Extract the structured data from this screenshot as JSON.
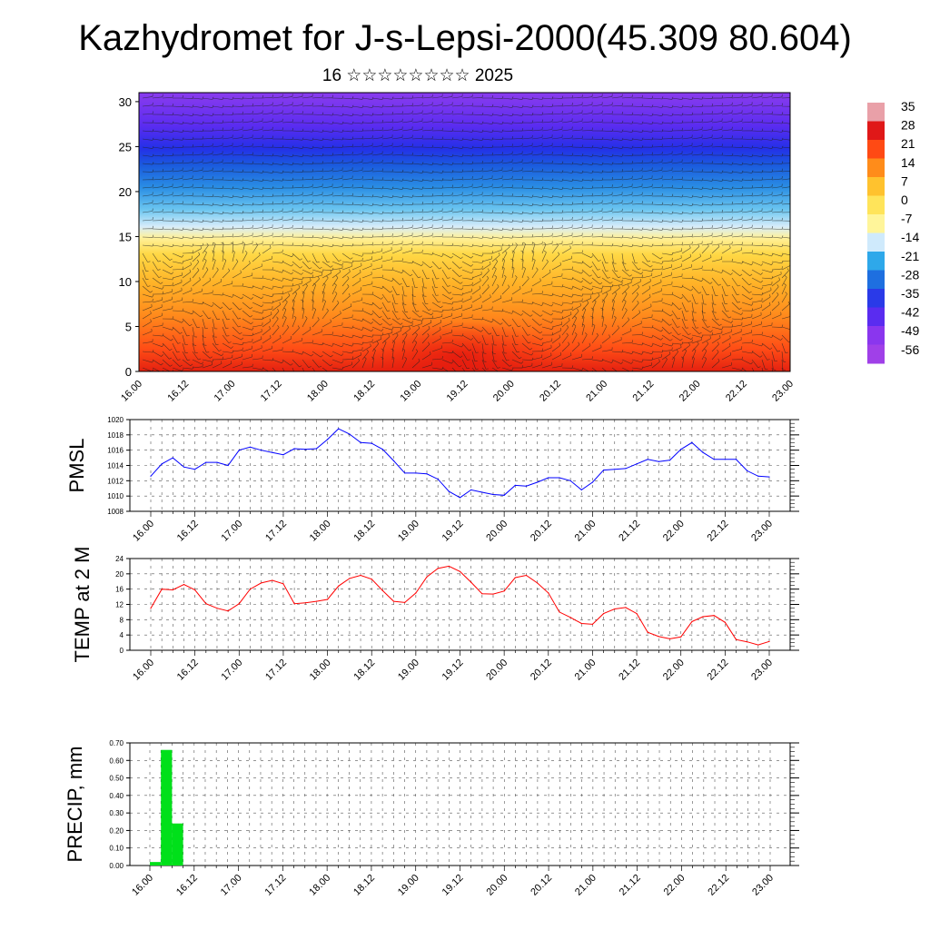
{
  "header": {
    "title": "Kazhydromet for J-s-Lepsi-2000(45.309 80.604)",
    "subtitle": "16 ☆☆☆☆☆☆☆☆ 2025"
  },
  "chart_data": [
    {
      "type": "heatmap",
      "x_labels": [
        "16.00",
        "16.12",
        "17.00",
        "17.12",
        "18.00",
        "18.12",
        "19.00",
        "19.12",
        "20.00",
        "20.12",
        "21.00",
        "21.12",
        "22.00",
        "22.12",
        "23.00"
      ],
      "y_ticks": [
        0,
        5,
        10,
        15,
        20,
        25,
        30
      ],
      "ylim": [
        0,
        31
      ],
      "colorbar": {
        "labels": [
          "35",
          "28",
          "21",
          "14",
          "7",
          "0",
          "-7",
          "-14",
          "-21",
          "-28",
          "-35",
          "-42",
          "-49",
          "-56"
        ],
        "colors": [
          "#e9a0a8",
          "#e01818",
          "#ff4a14",
          "#ff8c1a",
          "#ffc22e",
          "#ffe45a",
          "#fff59a",
          "#cfeafc",
          "#2ea8ea",
          "#1e6fe0",
          "#2a3ae8",
          "#5a2cf0",
          "#8a36ee",
          "#a040e8"
        ]
      },
      "wind_barbs": true
    },
    {
      "type": "line",
      "ylabel": "PMSL",
      "x_labels": [
        "16.00",
        "16.12",
        "17.00",
        "17.12",
        "18.00",
        "18.12",
        "19.00",
        "19.12",
        "20.00",
        "20.12",
        "21.00",
        "21.12",
        "22.00",
        "22.12",
        "23.00"
      ],
      "y_ticks": [
        "1008",
        "1010",
        "1012",
        "1014",
        "1016",
        "1018",
        "1020"
      ],
      "ylim": [
        1008,
        1020
      ],
      "color": "#0000ff",
      "values": [
        1012.6,
        1014.2,
        1015.0,
        1013.8,
        1013.5,
        1014.4,
        1014.4,
        1014.0,
        1016.0,
        1016.4,
        1016.0,
        1015.7,
        1015.4,
        1016.2,
        1016.1,
        1016.2,
        1017.4,
        1018.8,
        1018.1,
        1017.0,
        1016.9,
        1016.1,
        1014.6,
        1013.0,
        1013.0,
        1012.9,
        1012.2,
        1010.6,
        1009.8,
        1010.8,
        1010.5,
        1010.2,
        1010.1,
        1011.4,
        1011.3,
        1011.8,
        1012.4,
        1012.4,
        1012.0,
        1010.8,
        1011.8,
        1013.4,
        1013.5,
        1013.6,
        1014.2,
        1014.8,
        1014.5,
        1014.7,
        1016.1,
        1017.0,
        1015.7,
        1014.8,
        1014.8,
        1014.8,
        1013.3,
        1012.6,
        1012.5
      ],
      "grid": true
    },
    {
      "type": "line",
      "ylabel": "TEMP at 2 M",
      "x_labels": [
        "16.00",
        "16.12",
        "17.00",
        "17.12",
        "18.00",
        "18.12",
        "19.00",
        "19.12",
        "20.00",
        "20.12",
        "21.00",
        "21.12",
        "22.00",
        "22.12",
        "23.00"
      ],
      "y_ticks": [
        "0",
        "4",
        "8",
        "12",
        "16",
        "20",
        "24"
      ],
      "ylim": [
        0,
        24
      ],
      "color": "#ff0000",
      "values": [
        11.0,
        16.0,
        15.8,
        17.2,
        15.8,
        12.2,
        11.0,
        10.3,
        12.2,
        16.0,
        17.6,
        18.3,
        17.4,
        12.2,
        12.4,
        12.8,
        13.3,
        16.8,
        18.8,
        19.6,
        18.6,
        15.6,
        12.8,
        12.5,
        15.0,
        19.2,
        21.4,
        22.0,
        20.6,
        17.8,
        14.8,
        14.7,
        15.5,
        19.0,
        19.6,
        17.6,
        15.0,
        10.0,
        8.6,
        7.0,
        6.8,
        9.6,
        10.8,
        11.2,
        9.6,
        4.7,
        3.6,
        3.0,
        3.5,
        7.5,
        8.8,
        9.1,
        7.3,
        2.8,
        2.2,
        1.4,
        2.3
      ],
      "grid": true
    },
    {
      "type": "bar",
      "ylabel": "PRECIP, mm",
      "x_labels": [
        "16.00",
        "16.12",
        "17.00",
        "17.12",
        "18.00",
        "18.12",
        "19.00",
        "19.12",
        "20.00",
        "20.12",
        "21.00",
        "21.12",
        "22.00",
        "22.12",
        "23.00"
      ],
      "y_ticks": [
        "0.00",
        "0.10",
        "0.20",
        "0.30",
        "0.40",
        "0.50",
        "0.60",
        "0.70"
      ],
      "ylim": [
        0,
        0.7
      ],
      "color": "#00e01a",
      "values": [
        0.02,
        0.66,
        0.24
      ],
      "grid": true
    }
  ]
}
